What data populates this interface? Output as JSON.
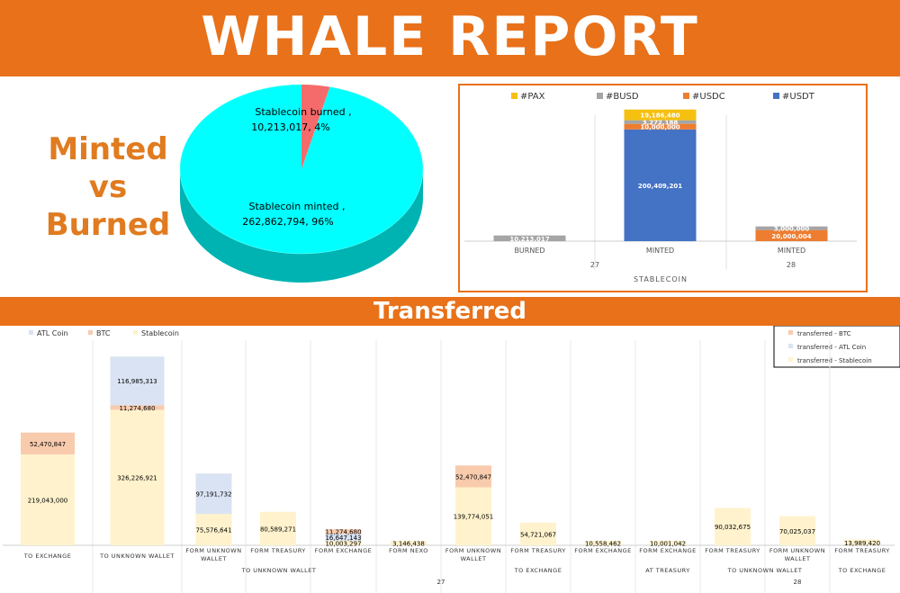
{
  "header": {
    "title": "WHALE  REPORT"
  },
  "left_title": {
    "line1": "Minted",
    "line2": "vs",
    "line3": "Burned"
  },
  "section2": {
    "title": "Transferred"
  },
  "colors": {
    "orange": "#e8711a",
    "pie_main": "#00ffff",
    "pie_minor": "#f56b6b",
    "pax": "#f5c010",
    "busd": "#a5a5a5",
    "usdc": "#ed7d31",
    "usdt": "#4472c4",
    "atl": "#dae3f3",
    "btc": "#f8cbad",
    "stable": "#fff2cc"
  },
  "chart_data": [
    {
      "type": "pie",
      "slices": [
        {
          "label": "Stablecoin burned",
          "value": 10213017,
          "percent": 4,
          "text": "Stablecoin burned ,",
          "value_text": "10,213,017, 4%"
        },
        {
          "label": "Stablecoin minted",
          "value": 262862794,
          "percent": 96,
          "text": "Stablecoin minted ,",
          "value_text": "262,862,794, 96%"
        }
      ]
    },
    {
      "type": "bar",
      "stacked": true,
      "legend": [
        "#PAX",
        "#BUSD",
        "#USDC",
        "#USDT"
      ],
      "categories": [
        "BURNED",
        "MINTED",
        "MINTED"
      ],
      "groups": [
        {
          "label": "27",
          "span": 2
        },
        {
          "label": "28",
          "span": 1
        }
      ],
      "xlabel": "STABLECOIN",
      "series": [
        {
          "name": "#USDT",
          "values": [
            0,
            200409201,
            0
          ],
          "labels": [
            "",
            "200,409,201",
            ""
          ]
        },
        {
          "name": "#USDC",
          "values": [
            0,
            10000000,
            20000004
          ],
          "labels": [
            "",
            "10,000,000",
            "20,000,004"
          ]
        },
        {
          "name": "#BUSD",
          "values": [
            10213017,
            3272188,
            3000000
          ],
          "labels": [
            "10,213,017",
            "3,272,188",
            "3,000,000"
          ]
        },
        {
          "name": "#PAX",
          "values": [
            0,
            19186480,
            0
          ],
          "labels": [
            "",
            "19,186,480",
            ""
          ]
        }
      ]
    },
    {
      "type": "bar",
      "stacked": true,
      "legend": [
        "ATL Coin",
        "BTC",
        "Stablecoin"
      ],
      "legend2": [
        "transferred  - BTC",
        "transferred  - ATL Coin",
        "transferred  - Stablecoin"
      ],
      "categories": [
        "",
        "",
        "FORM UNKNOWN WALLET",
        "FORM TREASURY",
        "FORM EXCHANGE",
        "FORM NEXO",
        "FORM UNKNOWN WALLET",
        "FORM TREASURY",
        "FORM EXCHANGE",
        "FORM EXCHANGE",
        "FORM TREASURY",
        "FORM UNKNOWN WALLET",
        "FORM TREASURY"
      ],
      "groups2": [
        {
          "label": "TO EXCHANGE",
          "span": 1
        },
        {
          "label": "TO UNKNOWN WALLET",
          "span": 1
        },
        {
          "label": "TO UNKNOWN WALLET",
          "span": 3
        },
        {
          "label": "",
          "span": 1
        },
        {
          "label": "TO EXCHANGE",
          "span": 3
        },
        {
          "label": "AT TREASURY",
          "span": 1
        },
        {
          "label": "TO UNKNOWN WALLET",
          "span": 2
        },
        {
          "label": "TO EXCHANGE",
          "span": 1
        }
      ],
      "groups1": [
        {
          "label": "27",
          "span": 9
        },
        {
          "label": "28",
          "span": 4
        }
      ],
      "series": [
        {
          "name": "Stablecoin",
          "values": [
            219043000,
            326226921,
            75576641,
            80589271,
            10003297,
            3146438,
            139774051,
            54721067,
            10558462,
            10001042,
            90032675,
            70025037,
            13989420
          ],
          "labels": [
            "219,043,000",
            "326,226,921",
            "75,576,641",
            "80,589,271",
            "10,003,297",
            "3,146,438",
            "139,774,051",
            "54,721,067",
            "10,558,462",
            "10,001,042",
            "90,032,675",
            "70,025,037",
            "13,989,420"
          ]
        },
        {
          "name": "ATL Coin",
          "values": [
            0,
            0,
            97191732,
            0,
            16647143,
            0,
            0,
            0,
            0,
            0,
            0,
            0,
            0
          ],
          "labels": [
            "",
            "",
            "97,191,732",
            "",
            "16,647,143",
            "",
            "",
            "",
            "",
            "",
            "",
            "",
            ""
          ]
        },
        {
          "name": "BTC",
          "values": [
            52470847,
            11274680,
            0,
            0,
            11274680,
            0,
            52470847,
            0,
            0,
            0,
            0,
            0,
            0
          ],
          "labels": [
            "52,470,847",
            "11,274,680",
            "",
            "",
            "11,274,680",
            "",
            "52,470,847",
            "",
            "",
            "",
            "",
            "",
            ""
          ]
        },
        {
          "name": "ATL Coin",
          "values": [
            0,
            116985313,
            0,
            0,
            0,
            0,
            0,
            0,
            0,
            0,
            0,
            0,
            0
          ],
          "labels": [
            "",
            "116,985,313",
            "",
            "",
            "",
            "",
            "",
            "",
            "",
            "",
            "",
            "",
            ""
          ]
        }
      ]
    }
  ]
}
